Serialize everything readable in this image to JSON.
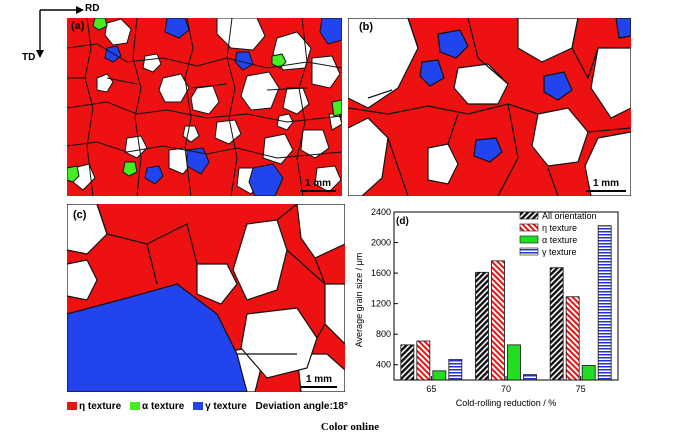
{
  "axes_labels": {
    "rd": "RD",
    "td": "TD"
  },
  "panels": {
    "a": {
      "label": "(a)",
      "scale": "1 mm"
    },
    "b": {
      "label": "(b)",
      "scale": "1 mm"
    },
    "c": {
      "label": "(c)",
      "scale": "1 mm"
    }
  },
  "texture_colors": {
    "eta": "#ee1111",
    "alpha": "#44ee22",
    "gamma": "#2244ee",
    "none": "#ffffff",
    "boundary": "#111111"
  },
  "map_legend": {
    "eta": "η texture",
    "alpha": "α texture",
    "gamma": "γ texture",
    "deviation": "Deviation angle:18°"
  },
  "caption": "Color online",
  "chart_data": {
    "type": "bar",
    "panel_label": "(d)",
    "categories": [
      "65",
      "70",
      "75"
    ],
    "xlabel": "Cold-rolling reduction / %",
    "ylabel": "Average grain size / μm",
    "ylim": [
      200,
      2400
    ],
    "yticks": [
      400,
      800,
      1200,
      1600,
      2000,
      2400
    ],
    "series": [
      {
        "name": "All orientation",
        "values": [
          660,
          1610,
          1670
        ],
        "color": "#111111",
        "pattern": "diag-dense"
      },
      {
        "name": "η texture",
        "values": [
          710,
          1760,
          1290
        ],
        "color": "#ee1111",
        "pattern": "diag"
      },
      {
        "name": "α texture",
        "values": [
          320,
          660,
          390
        ],
        "color": "#22dd22",
        "pattern": "solid"
      },
      {
        "name": "γ texture",
        "values": [
          470,
          270,
          2220
        ],
        "color": "#2233cc",
        "pattern": "horizontal"
      }
    ],
    "legend_position": "top-right"
  }
}
